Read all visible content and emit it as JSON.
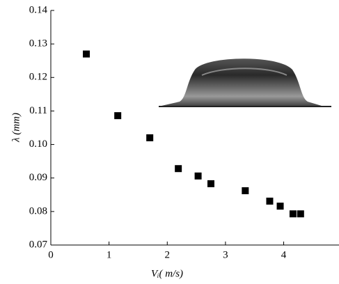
{
  "chart_data": {
    "type": "scatter",
    "x_label": "Vᵢ( m/s)",
    "y_label": "λ (mm)",
    "x": [
      0.61,
      1.15,
      1.7,
      2.19,
      2.53,
      2.75,
      3.34,
      3.76,
      3.94,
      4.16,
      4.29
    ],
    "values": [
      0.127,
      0.1086,
      0.102,
      0.0928,
      0.0906,
      0.0883,
      0.0862,
      0.0831,
      0.0816,
      0.0793,
      0.0793
    ],
    "color": "#000000",
    "xlim": [
      0,
      4.95
    ],
    "xticks": [
      0,
      1,
      2,
      3,
      4
    ],
    "ylim": [
      0.07,
      0.14
    ],
    "yticks": [
      0.07,
      0.08,
      0.09,
      {
        "value": 0.1,
        "label": "0.10"
      },
      0.11,
      0.12,
      0.13,
      0.14
    ]
  }
}
